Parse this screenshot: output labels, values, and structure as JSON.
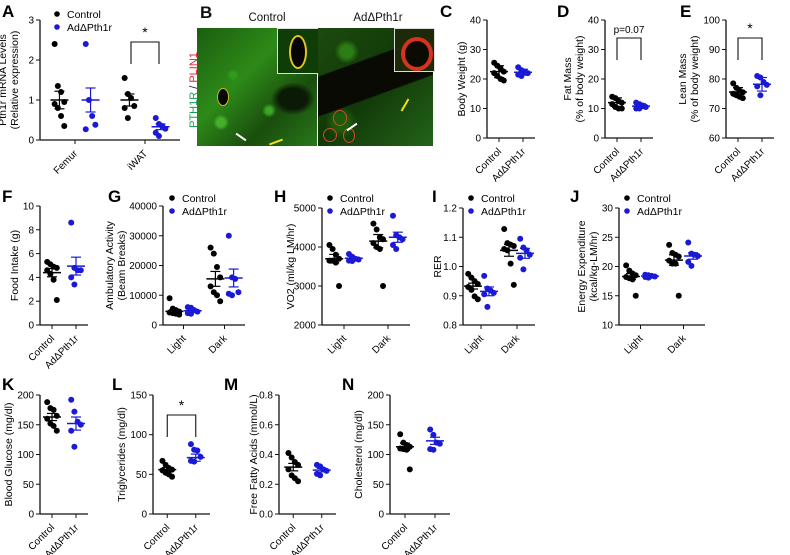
{
  "colors": {
    "control": "#000000",
    "ko": "#1a1ad6",
    "axis": "#111111"
  },
  "legend": {
    "control": "Control",
    "ko": "AdΔPth1r"
  },
  "panel_b": {
    "letter": "B",
    "ylabel_green": "PTH1R",
    "ylabel_sep": " / ",
    "ylabel_red": "PLIN1",
    "titles": [
      "Control",
      "AdΔPth1r"
    ]
  },
  "chart_data": [
    {
      "id": "A",
      "type": "scatter",
      "title": "",
      "ylabel": "Pth1r mRNA Levels (Relative expression)",
      "categories": [
        "Femur",
        "iWAT"
      ],
      "ylim": [
        0,
        3
      ],
      "yticks": [
        0,
        1,
        2,
        3
      ],
      "legend_position": "top-left",
      "series": [
        {
          "name": "Control",
          "values": [
            [
              2.4,
              1.35,
              1.2,
              0.95,
              0.9,
              0.8,
              0.6,
              0.35
            ],
            [
              1.55,
              1.15,
              1.05,
              0.85,
              0.8,
              0.55
            ]
          ],
          "mean": [
            1.0,
            1.0
          ],
          "sem": [
            0.22,
            0.15
          ]
        },
        {
          "name": "AdΔPth1r",
          "values": [
            [
              2.4,
              1.0,
              0.6,
              0.38,
              0.27
            ],
            [
              0.55,
              0.4,
              0.35,
              0.28,
              0.18,
              0.1
            ]
          ],
          "mean": [
            1.0,
            0.33
          ],
          "sem": [
            0.3,
            0.07
          ]
        }
      ],
      "annotations": [
        {
          "text": "*",
          "between": [
            "iWAT Control",
            "iWAT AdΔPth1r"
          ]
        }
      ]
    },
    {
      "id": "C",
      "type": "scatter",
      "ylabel": "Body Weight (g)",
      "categories": [
        "Control",
        "AdΔPth1r"
      ],
      "ylim": [
        0,
        40
      ],
      "yticks": [
        0,
        10,
        20,
        30,
        40
      ],
      "series": [
        {
          "name": "Control",
          "values": [
            [
              25.5,
              24.5,
              23.5,
              22.5,
              22,
              21,
              20,
              19.5
            ]
          ],
          "mean": [
            22.5
          ],
          "sd": [
            2.0
          ]
        },
        {
          "name": "AdΔPth1r",
          "values": [
            [
              24,
              23,
              22.5,
              22,
              21.5,
              21
            ]
          ],
          "mean": [
            22.3
          ],
          "sd": [
            1.0
          ]
        }
      ]
    },
    {
      "id": "D",
      "type": "scatter",
      "ylabel": "Fat Mass (% of body weight)",
      "categories": [
        "Control",
        "AdΔPth1r"
      ],
      "ylim": [
        0,
        40
      ],
      "yticks": [
        0,
        10,
        20,
        30,
        40
      ],
      "series": [
        {
          "name": "Control",
          "values": [
            [
              14,
              13.5,
              12.5,
              12,
              11.5,
              10.5,
              10,
              10
            ]
          ],
          "mean": [
            12
          ],
          "sd": [
            1.6
          ]
        },
        {
          "name": "AdΔPth1r",
          "values": [
            [
              12,
              11.5,
              11,
              10.5,
              10,
              10
            ]
          ],
          "mean": [
            10.8
          ],
          "sd": [
            0.8
          ]
        }
      ],
      "annotations": [
        {
          "text": "p=0.07"
        }
      ]
    },
    {
      "id": "E",
      "type": "scatter",
      "ylabel": "Lean Mass (% of body weight)",
      "categories": [
        "Control",
        "AdΔPth1r"
      ],
      "ylim": [
        60,
        100
      ],
      "yticks": [
        60,
        70,
        80,
        90,
        100
      ],
      "series": [
        {
          "name": "Control",
          "values": [
            [
              78.5,
              77,
              76,
              75.5,
              75,
              74.5,
              74,
              73.5
            ]
          ],
          "mean": [
            75.6
          ],
          "sd": [
            1.5
          ]
        },
        {
          "name": "AdΔPth1r",
          "values": [
            [
              81,
              80.5,
              79,
              78,
              77.5,
              74.5
            ]
          ],
          "mean": [
            78.2
          ],
          "sd": [
            2.3
          ]
        }
      ],
      "annotations": [
        {
          "text": "*"
        }
      ]
    },
    {
      "id": "F",
      "type": "scatter",
      "ylabel": "Food Intake (g)",
      "categories": [
        "Control",
        "AdΔPth1r"
      ],
      "ylim": [
        0,
        10
      ],
      "yticks": [
        0,
        2,
        4,
        6,
        8,
        10
      ],
      "series": [
        {
          "name": "Control",
          "values": [
            [
              5.3,
              5.1,
              4.9,
              4.8,
              4.6,
              4.3,
              3.8,
              2.1
            ]
          ],
          "mean": [
            4.4
          ],
          "sem": [
            0.35
          ]
        },
        {
          "name": "AdΔPth1r",
          "values": [
            [
              8.6,
              4.8,
              4.6,
              4.6,
              4.0,
              3.4
            ]
          ],
          "mean": [
            4.95
          ],
          "sem": [
            0.75
          ]
        }
      ]
    },
    {
      "id": "G",
      "type": "scatter",
      "ylabel": "Ambulatory Activity (Beam Breaks)",
      "categories": [
        "Light",
        "Dark"
      ],
      "ylim": [
        0,
        40000
      ],
      "yticks": [
        0,
        10000,
        20000,
        30000,
        40000
      ],
      "legend_position": "top-left",
      "series": [
        {
          "name": "Control",
          "values": [
            [
              9000,
              5500,
              5000,
              4500,
              4200,
              4000,
              3800,
              3500
            ],
            [
              26000,
              24000,
              19500,
              16000,
              13000,
              11000,
              10000,
              8000
            ]
          ],
          "mean": [
            4600,
            15500
          ],
          "sem": [
            600,
            2500
          ]
        },
        {
          "name": "AdΔPth1r",
          "values": [
            [
              6000,
              5800,
              5000,
              4500,
              4000,
              3800
            ],
            [
              30000,
              16000,
              15500,
              11000,
              10500,
              10000
            ]
          ],
          "mean": [
            4800,
            15800
          ],
          "sem": [
            400,
            3000
          ]
        }
      ]
    },
    {
      "id": "H",
      "type": "scatter",
      "ylabel": "VO2 (ml/kg LM/hr)",
      "categories": [
        "Light",
        "Dark"
      ],
      "ylim": [
        2000,
        5000
      ],
      "yticks": [
        2000,
        3000,
        4000,
        5000
      ],
      "legend_position": "top-left",
      "series": [
        {
          "name": "Control",
          "values": [
            [
              4050,
              3950,
              3800,
              3700,
              3650,
              3650,
              3600,
              3000
            ],
            [
              4600,
              4450,
              4250,
              4200,
              4100,
              4000,
              3950,
              3000
            ]
          ],
          "mean": [
            3700,
            4150
          ],
          "sem": [
            110,
            170
          ]
        },
        {
          "name": "AdΔPth1r",
          "values": [
            [
              3820,
              3750,
              3700,
              3680,
              3650,
              3640
            ],
            [
              4800,
              4300,
              4250,
              4200,
              4050,
              3950
            ]
          ],
          "mean": [
            3710,
            4250
          ],
          "sem": [
            30,
            130
          ]
        }
      ]
    },
    {
      "id": "I",
      "type": "scatter",
      "ylabel": "RER",
      "categories": [
        "Light",
        "Dark"
      ],
      "ylim": [
        0.8,
        1.2
      ],
      "yticks": [
        0.8,
        0.9,
        1.0,
        1.1,
        1.2
      ],
      "legend_position": "top-left",
      "series": [
        {
          "name": "Control",
          "values": [
            [
              0.975,
              0.962,
              0.95,
              0.94,
              0.93,
              0.92,
              0.898,
              0.888
            ],
            [
              1.128,
              1.08,
              1.075,
              1.07,
              1.06,
              1.055,
              1.01,
              0.937
            ]
          ],
          "mean": [
            0.933,
            1.055
          ],
          "sem": [
            0.01,
            0.02
          ]
        },
        {
          "name": "AdΔPth1r",
          "values": [
            [
              0.968,
              0.925,
              0.918,
              0.91,
              0.905,
              0.862
            ],
            [
              1.095,
              1.065,
              1.055,
              1.04,
              1.03,
              0.99
            ]
          ],
          "mean": [
            0.915,
            1.045
          ],
          "sem": [
            0.015,
            0.017
          ]
        }
      ]
    },
    {
      "id": "J",
      "type": "scatter",
      "ylabel": "Energy Expenditure (kcal/kg-LM/hr)",
      "categories": [
        "Light",
        "Dark"
      ],
      "ylim": [
        10,
        30
      ],
      "yticks": [
        10,
        15,
        20,
        25,
        30
      ],
      "legend_position": "top-left",
      "series": [
        {
          "name": "Control",
          "values": [
            [
              20.2,
              19.3,
              18.8,
              18.5,
              18.2,
              18.0,
              17.8,
              15.0
            ],
            [
              23.7,
              22.3,
              22.0,
              21.7,
              21.0,
              20.5,
              20.5,
              15.0
            ]
          ],
          "mean": [
            18.3,
            21.1
          ],
          "sem": [
            0.5,
            0.9
          ]
        },
        {
          "name": "AdΔPth1r",
          "values": [
            [
              18.6,
              18.5,
              18.4,
              18.3,
              18.2,
              18.1
            ],
            [
              24.1,
              22.2,
              22.0,
              21.8,
              20.8,
              20.1
            ]
          ],
          "mean": [
            18.35,
            21.8
          ],
          "sem": [
            0.1,
            0.55
          ]
        }
      ]
    },
    {
      "id": "K",
      "type": "scatter",
      "ylabel": "Blood Glucose (mg/dl)",
      "categories": [
        "Control",
        "AdΔPth1r"
      ],
      "ylim": [
        0,
        200
      ],
      "yticks": [
        0,
        50,
        100,
        150,
        200
      ],
      "series": [
        {
          "name": "Control",
          "values": [
            [
              188,
              178,
              175,
              165,
              160,
              152,
              148,
              140
            ]
          ],
          "mean": [
            163
          ],
          "sem": [
            6
          ]
        },
        {
          "name": "AdΔPth1r",
          "values": [
            [
              192,
              172,
              155,
              150,
              140,
              113
            ]
          ],
          "mean": [
            152
          ],
          "sem": [
            11
          ]
        }
      ]
    },
    {
      "id": "L",
      "type": "scatter",
      "ylabel": "Triglycerides (mg/dl)",
      "categories": [
        "Control",
        "AdΔPth1r"
      ],
      "ylim": [
        0,
        150
      ],
      "yticks": [
        0,
        50,
        100,
        150
      ],
      "series": [
        {
          "name": "Control",
          "values": [
            [
              67,
              62,
              58,
              56,
              55,
              52,
              50,
              47
            ]
          ],
          "mean": [
            56
          ],
          "sem": [
            2.5
          ]
        },
        {
          "name": "AdΔPth1r",
          "values": [
            [
              88,
              81,
              80,
              72,
              67,
              66
            ]
          ],
          "mean": [
            71
          ],
          "sem": [
            4.5
          ]
        }
      ],
      "annotations": [
        {
          "text": "*"
        }
      ]
    },
    {
      "id": "M",
      "type": "scatter",
      "ylabel": "Free Fatty Acids (mmol/L)",
      "categories": [
        "Control",
        "AdΔPth1r"
      ],
      "ylim": [
        0.0,
        0.8
      ],
      "yticks": [
        0.0,
        0.2,
        0.4,
        0.6,
        0.8
      ],
      "series": [
        {
          "name": "Control",
          "values": [
            [
              0.41,
              0.38,
              0.35,
              0.33,
              0.3,
              0.26,
              0.24,
              0.22
            ]
          ],
          "mean": [
            0.315
          ],
          "sem": [
            0.025
          ]
        },
        {
          "name": "AdΔPth1r",
          "values": [
            [
              0.33,
              0.32,
              0.3,
              0.29,
              0.27,
              0.26
            ]
          ],
          "mean": [
            0.295
          ],
          "sem": [
            0.012
          ]
        }
      ]
    },
    {
      "id": "N",
      "type": "scatter",
      "ylabel": "Cholesterol (mg/dl)",
      "categories": [
        "Control",
        "AdΔPth1r"
      ],
      "ylim": [
        0,
        200
      ],
      "yticks": [
        0,
        50,
        100,
        150,
        200
      ],
      "series": [
        {
          "name": "Control",
          "values": [
            [
              134,
              120,
              116,
              113,
              110,
              109,
              108,
              75
            ]
          ],
          "mean": [
            113
          ],
          "sem": [
            6
          ]
        },
        {
          "name": "AdΔPth1r",
          "values": [
            [
              142,
              133,
              120,
              118,
              109,
              108
            ]
          ],
          "mean": [
            123
          ],
          "sem": [
            6
          ]
        }
      ]
    }
  ]
}
